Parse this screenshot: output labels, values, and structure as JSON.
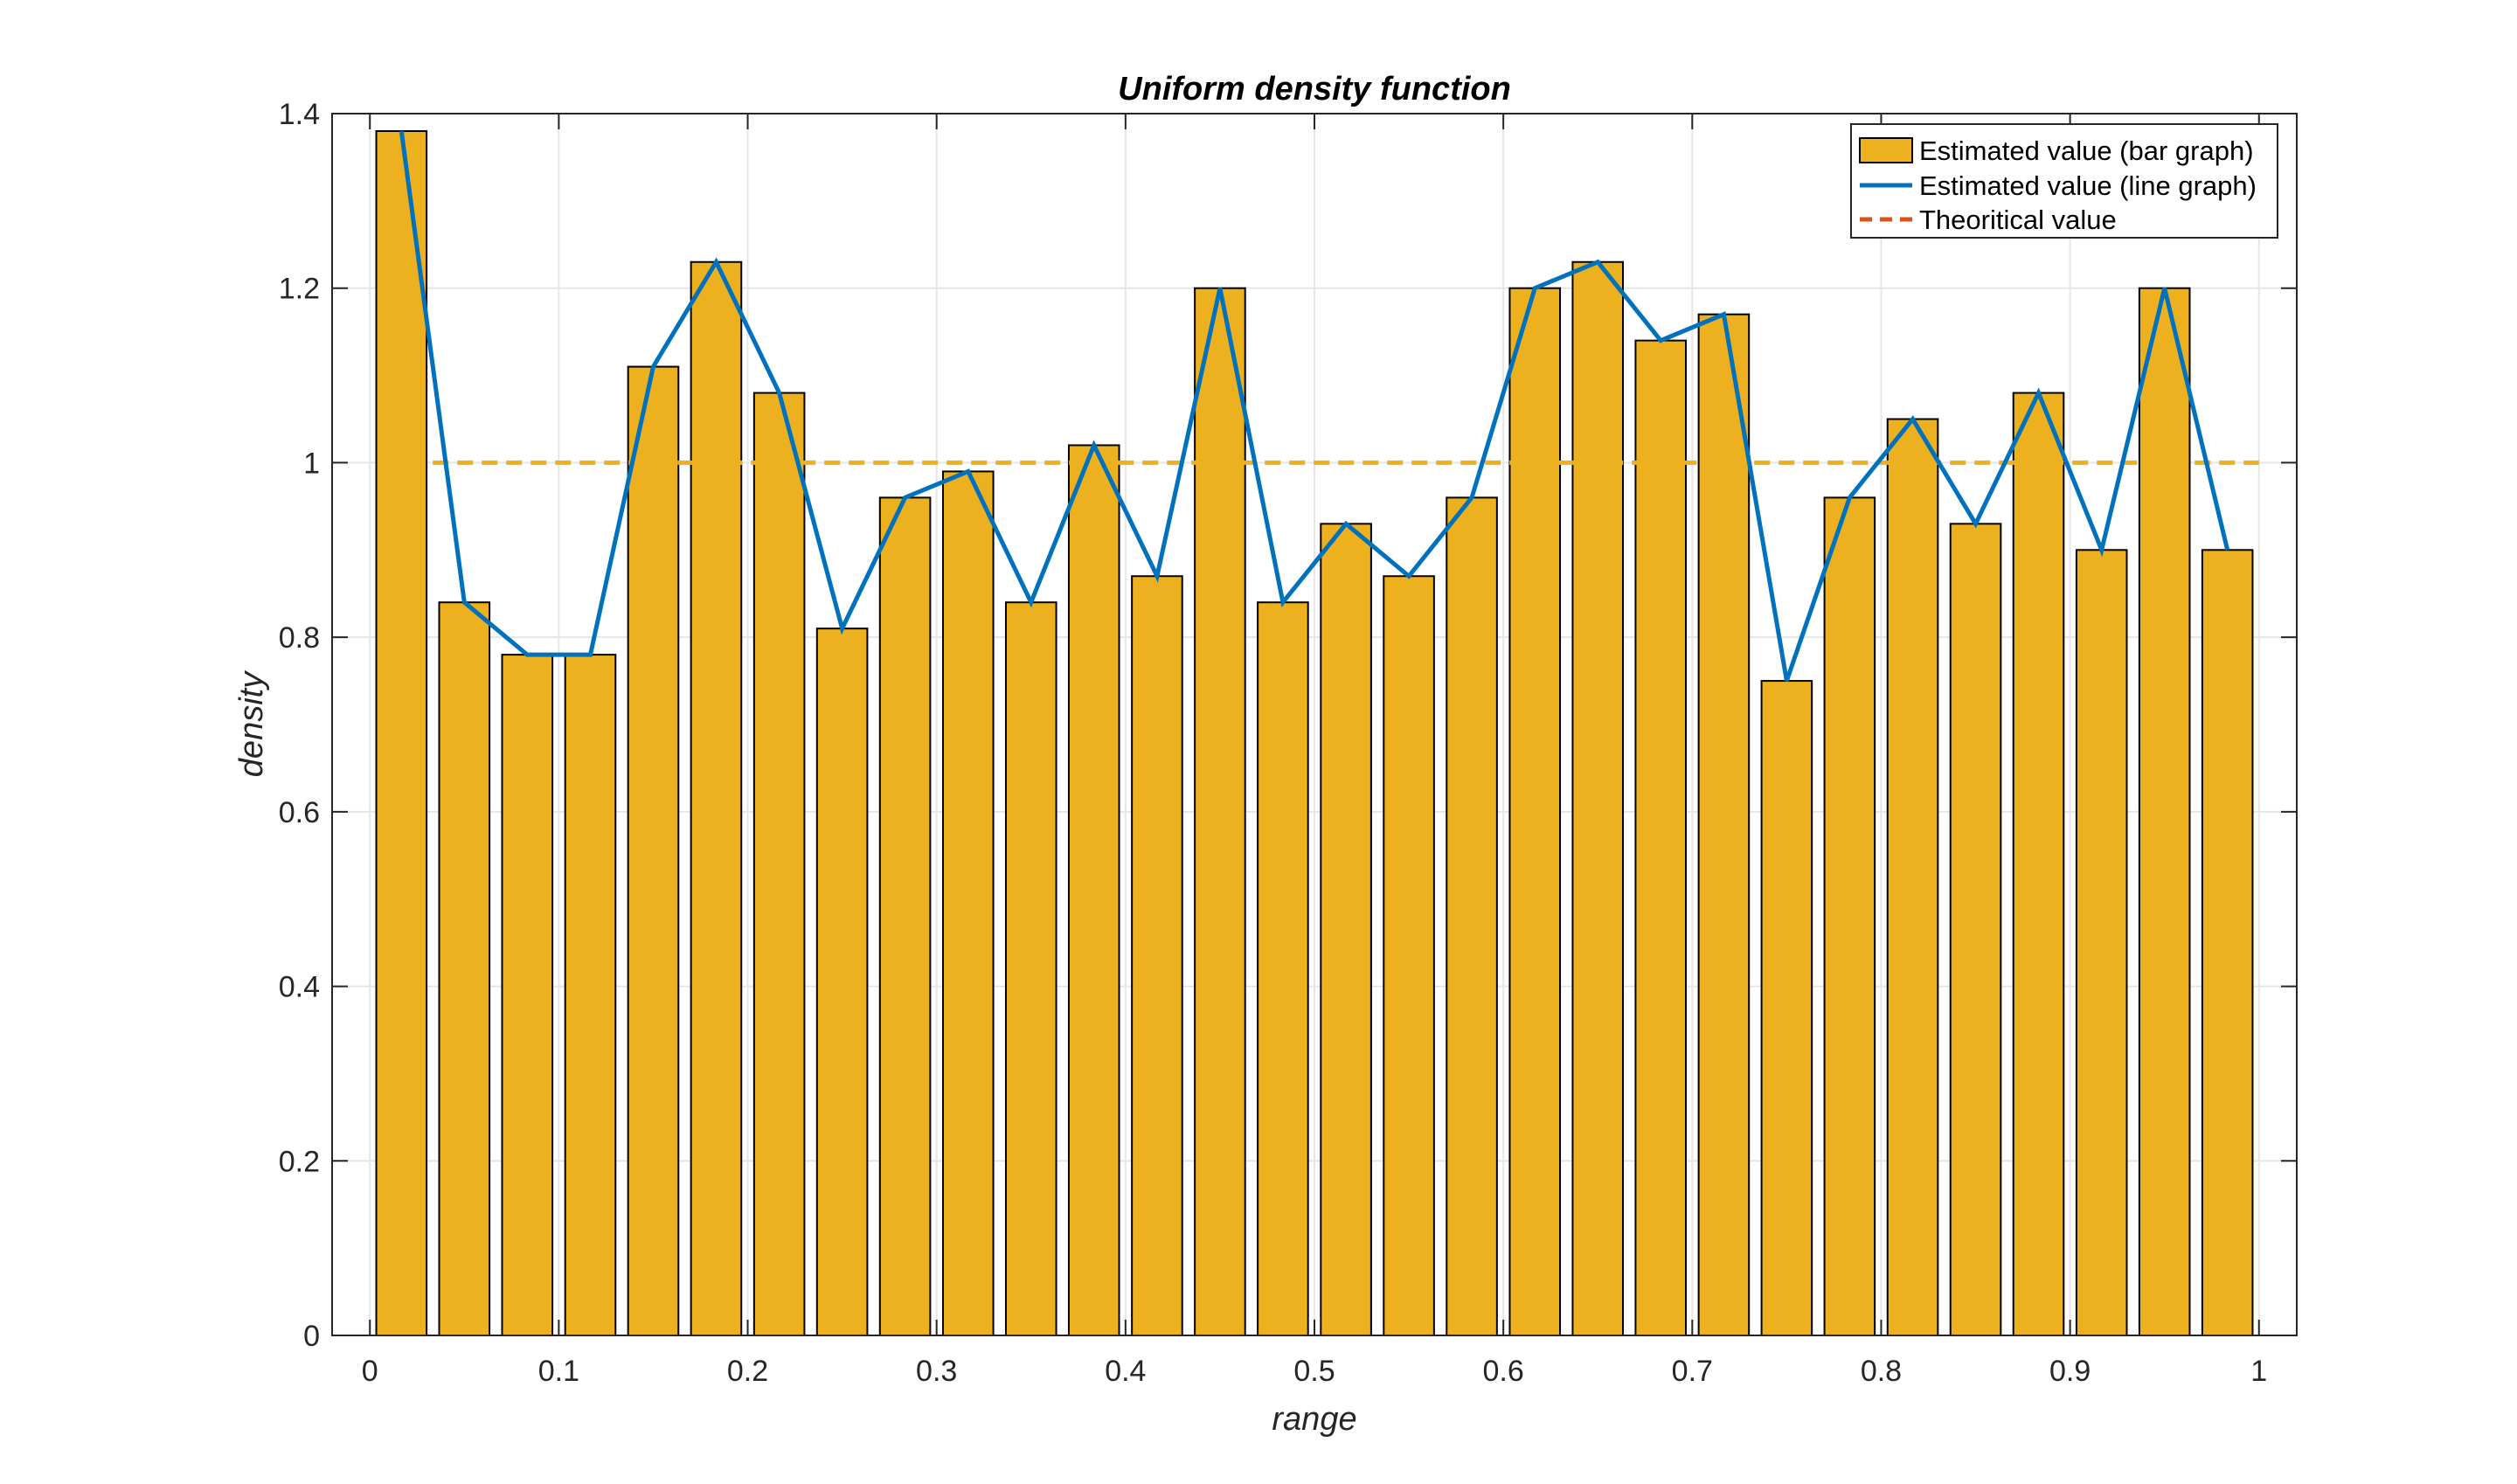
{
  "chart_data": {
    "type": "bar",
    "title": "Uniform density function",
    "xlabel": "range",
    "ylabel": "density",
    "xlim": [
      -0.02,
      1.02
    ],
    "ylim": [
      0,
      1.4
    ],
    "x_ticks": [
      "0",
      "0.1",
      "0.2",
      "0.3",
      "0.4",
      "0.5",
      "0.6",
      "0.7",
      "0.8",
      "0.9",
      "1"
    ],
    "y_ticks": [
      "0",
      "0.2",
      "0.4",
      "0.6",
      "0.8",
      "1",
      "1.2",
      "1.4"
    ],
    "grid": true,
    "legend_position": "top-right",
    "legend": [
      "Estimated value (bar graph)",
      "Estimated value (line graph)",
      "Theoritical value"
    ],
    "bin_width": 0.0333,
    "x": [
      0.0167,
      0.05,
      0.0833,
      0.1167,
      0.15,
      0.1833,
      0.2167,
      0.25,
      0.2833,
      0.3167,
      0.35,
      0.3833,
      0.4167,
      0.45,
      0.4833,
      0.5167,
      0.55,
      0.5833,
      0.6167,
      0.65,
      0.6833,
      0.7167,
      0.75,
      0.7833,
      0.8167,
      0.85,
      0.8833,
      0.9167,
      0.95,
      0.9833
    ],
    "values": [
      1.38,
      0.84,
      0.78,
      0.78,
      1.11,
      1.23,
      1.08,
      0.81,
      0.96,
      0.99,
      0.84,
      1.02,
      0.87,
      1.2,
      0.84,
      0.93,
      0.87,
      0.96,
      1.2,
      1.23,
      1.14,
      1.17,
      0.75,
      0.96,
      1.05,
      0.93,
      1.08,
      0.9,
      1.2,
      0.9
    ],
    "theoretical": {
      "x": [
        0.0333,
        1.0
      ],
      "y": [
        1,
        1
      ]
    },
    "colors": {
      "bar_fill": "#EDB120",
      "bar_edge": "#000000",
      "line": "#0072BD",
      "theoretical": "#EDB120",
      "legend_theoretical": "#D95319",
      "grid": "#E6E6E6",
      "axis": "#262626"
    }
  }
}
